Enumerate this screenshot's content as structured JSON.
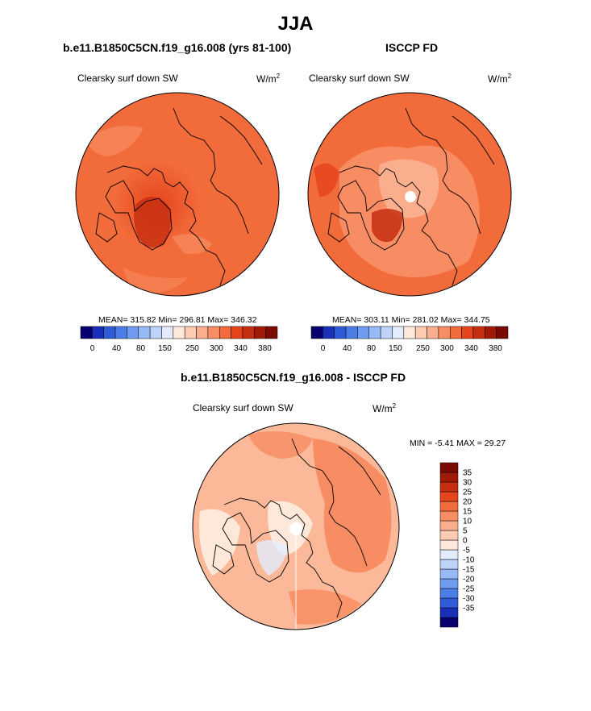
{
  "figure": {
    "title": "JJA"
  },
  "panels": [
    {
      "id": "model",
      "title": "b.e11.B1850C5CN.f19_g16.008 (yrs 81-100)",
      "variable": "Clearsky surf down SW",
      "units_base": "W/m",
      "units_exp": "2",
      "stats": "MEAN= 315.82  Min= 296.81  Max= 346.32",
      "has_pole_hole": false,
      "base_color": "#f26b3a"
    },
    {
      "id": "obs",
      "title": "ISCCP FD",
      "variable": "Clearsky surf down SW",
      "units_base": "W/m",
      "units_exp": "2",
      "stats": "MEAN= 303.11  Min= 281.02  Max= 344.75",
      "has_pole_hole": true,
      "base_color": "#f26b3a"
    },
    {
      "id": "diff",
      "title": "b.e11.B1850C5CN.f19_g16.008 - ISCCP FD",
      "variable": "Clearsky surf down SW",
      "units_base": "W/m",
      "units_exp": "2",
      "stats": "MIN =  -5.41 MAX =  29.27",
      "has_pole_hole": true,
      "base_color": "#fbb99a"
    }
  ],
  "colorbars": {
    "absolute": {
      "colors": [
        "#08006e",
        "#1a2fb8",
        "#2f5bd9",
        "#4b7ee6",
        "#6f9cf0",
        "#97b9f5",
        "#bdd3f9",
        "#e2ecfc",
        "#fde8da",
        "#fccbb1",
        "#fbae8d",
        "#f88c62",
        "#f26b3a",
        "#e5441c",
        "#c62e10",
        "#a01a08",
        "#7a0a02"
      ],
      "tick_labels": [
        "0",
        "40",
        "80",
        "150",
        "250",
        "300",
        "340",
        "380"
      ]
    },
    "difference": {
      "colors": [
        "#08006e",
        "#1a2fb8",
        "#2f5bd9",
        "#4b7ee6",
        "#6f9cf0",
        "#97b9f5",
        "#bdd3f9",
        "#e2ecfc",
        "#fde8da",
        "#fccbb1",
        "#fbae8d",
        "#f88c62",
        "#f26b3a",
        "#e5441c",
        "#c62e10",
        "#a01a08",
        "#7a0a02"
      ],
      "tick_labels": [
        "-35",
        "-30",
        "-25",
        "-20",
        "-15",
        "-10",
        "-5",
        "0",
        "5",
        "10",
        "15",
        "20",
        "25",
        "30",
        "35"
      ]
    }
  },
  "chart_data": [
    {
      "type": "heatmap",
      "projection": "polar-stereographic",
      "title": "b.e11.B1850C5CN.f19_g16.008 (yrs 81-100)",
      "variable": "Clearsky surf down SW",
      "units": "W/m2",
      "mean": 315.82,
      "min": 296.81,
      "max": 346.32,
      "contour_levels": [
        0,
        40,
        80,
        150,
        250,
        300,
        340,
        380
      ]
    },
    {
      "type": "heatmap",
      "projection": "polar-stereographic",
      "title": "ISCCP FD",
      "variable": "Clearsky surf down SW",
      "units": "W/m2",
      "mean": 303.11,
      "min": 281.02,
      "max": 344.75,
      "contour_levels": [
        0,
        40,
        80,
        150,
        250,
        300,
        340,
        380
      ]
    },
    {
      "type": "heatmap",
      "projection": "polar-stereographic",
      "title": "b.e11.B1850C5CN.f19_g16.008 - ISCCP FD",
      "variable": "Clearsky surf down SW",
      "units": "W/m2",
      "min": -5.41,
      "max": 29.27,
      "contour_levels": [
        -35,
        -30,
        -25,
        -20,
        -15,
        -10,
        -5,
        0,
        5,
        10,
        15,
        20,
        25,
        30,
        35
      ]
    }
  ]
}
